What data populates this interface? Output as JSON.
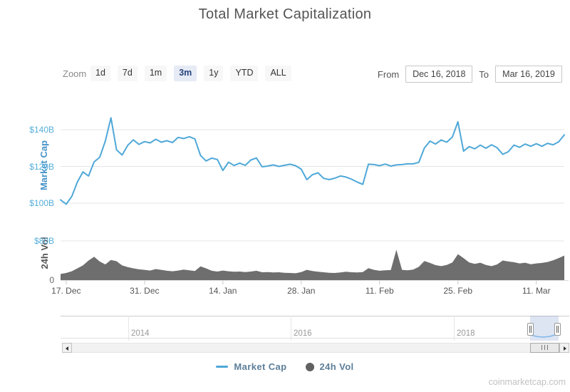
{
  "title": "Total Market Capitalization",
  "watermark": "coinmarketcap.com",
  "range_selector": {
    "zoom_label": "Zoom",
    "buttons": [
      {
        "label": "1d",
        "selected": false
      },
      {
        "label": "7d",
        "selected": false
      },
      {
        "label": "1m",
        "selected": false
      },
      {
        "label": "3m",
        "selected": true
      },
      {
        "label": "1y",
        "selected": false
      },
      {
        "label": "YTD",
        "selected": false
      },
      {
        "label": "ALL",
        "selected": false
      }
    ],
    "from_label": "From",
    "from_value": "Dec 16, 2018",
    "to_label": "To",
    "to_value": "Mar 16, 2019"
  },
  "legend": [
    {
      "label": "Market Cap",
      "marker": "line",
      "color": "#4FA8D8"
    },
    {
      "label": "24h Vol",
      "marker": "circle",
      "color": "#616161"
    }
  ],
  "navigator": {
    "year_labels": [
      "2014",
      "2016",
      "2018"
    ]
  },
  "colors": {
    "market_cap_line": "#4FA8D8",
    "volume_fill": "#6E6E6E",
    "axis_label_blue": "#55AED9",
    "axis_label_gray": "#666666",
    "main_axis_title": "#4793C9",
    "vol_axis_title": "#555555",
    "button_bg": "#F7F7F7",
    "selected_button_bg": "#E6EBF5",
    "selected_button_text": "#29437C",
    "gridline": "#E6E6E6",
    "legend_text": "#5C7E99"
  },
  "chart_data": {
    "type": "line",
    "title": "Total Market Capitalization",
    "x_range": {
      "start": "2018-12-16",
      "end": "2019-03-16",
      "step": "1 day",
      "points": 91
    },
    "x_ticks": [
      {
        "label": "17. Dec",
        "index": 1
      },
      {
        "label": "31. Dec",
        "index": 15
      },
      {
        "label": "14. Jan",
        "index": 29
      },
      {
        "label": "28. Jan",
        "index": 43
      },
      {
        "label": "11. Feb",
        "index": 57
      },
      {
        "label": "25. Feb",
        "index": 71
      },
      {
        "label": "11. Mar",
        "index": 85
      }
    ],
    "y_axes": [
      {
        "title": "Market Cap",
        "unit": "USD billions",
        "range": [
          97,
          152
        ],
        "ticks": [
          {
            "label": "$100B",
            "value": 100,
            "color": "#55AED9"
          },
          {
            "label": "$120B",
            "value": 120,
            "color": "#55AED9"
          },
          {
            "label": "$140B",
            "value": 140,
            "color": "#55AED9"
          }
        ]
      },
      {
        "title": "24h Vol",
        "unit": "USD billions",
        "range": [
          0,
          92
        ],
        "ticks": [
          {
            "label": "0",
            "value": 0,
            "color": "#666666"
          },
          {
            "label": "$80B",
            "value": 80,
            "color": "#55AED9"
          }
        ]
      }
    ],
    "series": [
      {
        "name": "Market Cap",
        "type": "line",
        "color": "#4FA8D8",
        "values": [
          101.8,
          99.4,
          103.6,
          111.5,
          117.0,
          114.8,
          122.5,
          125.0,
          133.8,
          146.5,
          129.0,
          126.2,
          131.5,
          134.5,
          132.0,
          133.5,
          132.8,
          134.8,
          133.2,
          134.0,
          133.0,
          135.8,
          135.2,
          136.2,
          135.0,
          126.0,
          123.0,
          124.5,
          123.8,
          117.8,
          122.3,
          120.5,
          121.8,
          120.6,
          123.5,
          124.6,
          119.8,
          120.2,
          120.8,
          120.0,
          120.6,
          121.2,
          120.4,
          118.5,
          112.8,
          115.5,
          116.5,
          113.5,
          112.8,
          113.6,
          114.8,
          114.2,
          113.0,
          111.5,
          110.2,
          121.2,
          121.0,
          120.4,
          121.3,
          120.2,
          120.8,
          121.0,
          121.4,
          121.4,
          122.2,
          130.0,
          133.8,
          132.2,
          134.4,
          133.2,
          136.0,
          144.3,
          128.3,
          130.8,
          129.6,
          131.6,
          129.9,
          131.8,
          130.2,
          126.6,
          128.0,
          131.6,
          130.4,
          132.2,
          131.0,
          132.4,
          131.0,
          132.6,
          131.8,
          133.4,
          137.2
        ]
      },
      {
        "name": "24h Vol",
        "type": "area",
        "color": "#6E6E6E",
        "values": [
          12.5,
          14.5,
          18.0,
          24.0,
          30.0,
          40.0,
          47.5,
          38.0,
          32.0,
          41.0,
          38.5,
          30.0,
          26.5,
          24.0,
          22.0,
          21.0,
          19.5,
          22.5,
          21.0,
          19.0,
          18.0,
          19.5,
          21.5,
          20.0,
          18.5,
          28.0,
          24.0,
          19.0,
          17.5,
          19.5,
          18.0,
          17.0,
          17.5,
          16.5,
          17.5,
          19.0,
          16.0,
          16.5,
          15.5,
          16.0,
          15.0,
          14.5,
          14.0,
          16.5,
          21.0,
          18.5,
          17.0,
          16.0,
          15.0,
          14.5,
          15.5,
          17.0,
          16.0,
          15.5,
          16.5,
          24.5,
          21.0,
          19.0,
          20.0,
          20.5,
          62.0,
          21.0,
          20.0,
          21.5,
          27.0,
          39.0,
          35.0,
          30.5,
          28.5,
          31.0,
          36.0,
          53.0,
          45.0,
          36.0,
          33.0,
          35.5,
          31.0,
          28.5,
          32.0,
          40.0,
          38.0,
          36.5,
          34.0,
          35.5,
          32.5,
          34.0,
          35.0,
          37.0,
          40.5,
          45.0,
          50.0
        ]
      }
    ],
    "legend_position": "bottom",
    "grid": true
  }
}
